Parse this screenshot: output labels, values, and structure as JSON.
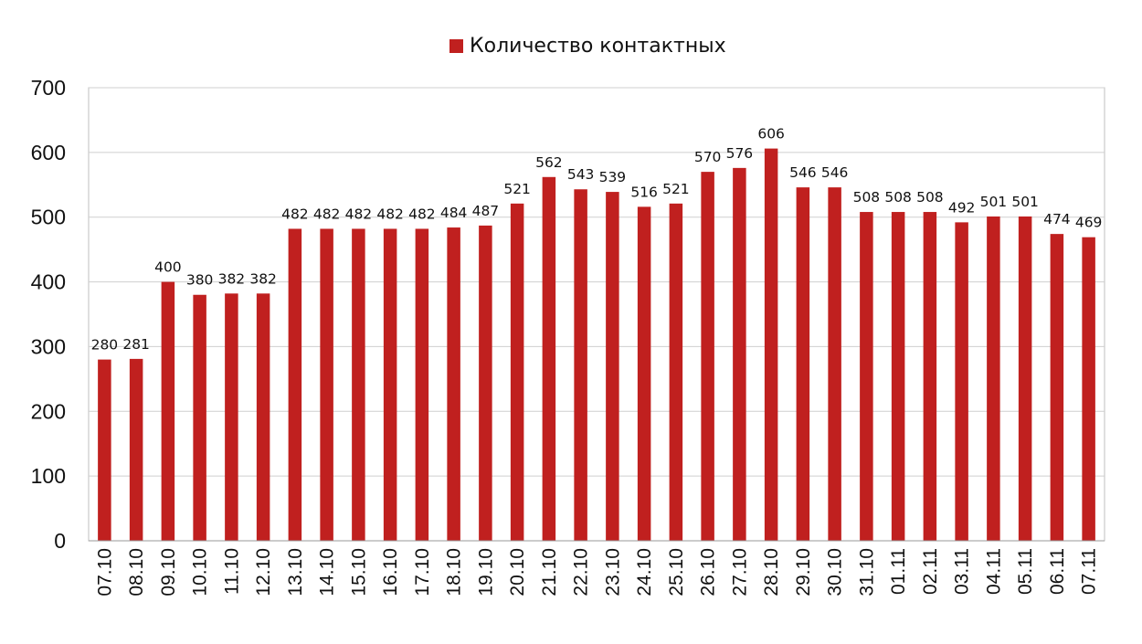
{
  "chart_data": {
    "type": "bar",
    "categories": [
      "07.10",
      "08.10",
      "09.10",
      "10.10",
      "11.10",
      "12.10",
      "13.10",
      "14.10",
      "15.10",
      "16.10",
      "17.10",
      "18.10",
      "19.10",
      "20.10",
      "21.10",
      "22.10",
      "23.10",
      "24.10",
      "25.10",
      "26.10",
      "27.10",
      "28.10",
      "29.10",
      "30.10",
      "31.10",
      "01.11",
      "02.11",
      "03.11",
      "04.11",
      "05.11",
      "06.11",
      "07.11"
    ],
    "series": [
      {
        "name": "Количество контактных",
        "values": [
          280,
          281,
          400,
          380,
          382,
          382,
          482,
          482,
          482,
          482,
          482,
          484,
          487,
          521,
          562,
          543,
          539,
          516,
          521,
          570,
          576,
          606,
          546,
          546,
          508,
          508,
          508,
          492,
          501,
          501,
          474,
          469
        ],
        "color": "#c0201f"
      }
    ],
    "ylim": [
      0,
      700
    ],
    "yticks": [
      "0",
      "100",
      "200",
      "300",
      "400",
      "500",
      "600",
      "700"
    ],
    "grid": true,
    "legend_position": "top-center"
  }
}
